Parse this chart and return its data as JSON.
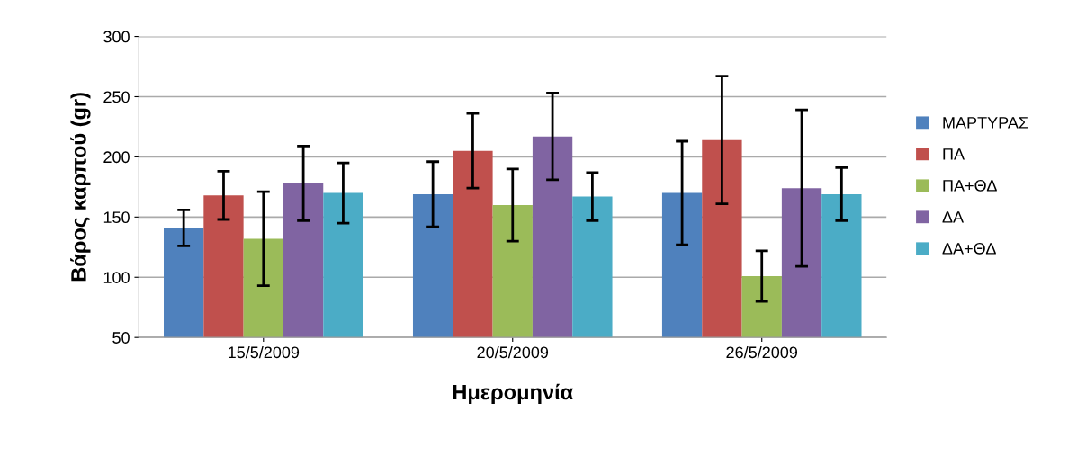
{
  "chart_data": {
    "type": "bar",
    "xlabel": "Ημερομηνία",
    "ylabel": "Βάρος καρπού (gr)",
    "categories": [
      "15/5/2009",
      "20/5/2009",
      "26/5/2009"
    ],
    "series": [
      {
        "name": "ΜΑΡΤΥΡΑΣ",
        "color": "#4f81bd",
        "values": [
          141,
          169,
          170
        ],
        "errors": [
          15,
          27,
          43
        ]
      },
      {
        "name": "ΠΑ",
        "color": "#c0504d",
        "values": [
          168,
          205,
          214
        ],
        "errors": [
          20,
          31,
          53
        ]
      },
      {
        "name": "ΠΑ+ΘΔ",
        "color": "#9bbb59",
        "values": [
          132,
          160,
          101
        ],
        "errors": [
          39,
          30,
          21
        ]
      },
      {
        "name": "ΔΑ",
        "color": "#8064a2",
        "values": [
          178,
          217,
          174
        ],
        "errors": [
          31,
          36,
          65
        ]
      },
      {
        "name": "ΔΑ+ΘΔ",
        "color": "#4bacc6",
        "values": [
          170,
          167,
          169
        ],
        "errors": [
          25,
          20,
          22
        ]
      }
    ],
    "ylim": [
      50,
      300
    ],
    "yticks": [
      50,
      100,
      150,
      200,
      250,
      300
    ],
    "grid": "y",
    "legend": "right"
  }
}
